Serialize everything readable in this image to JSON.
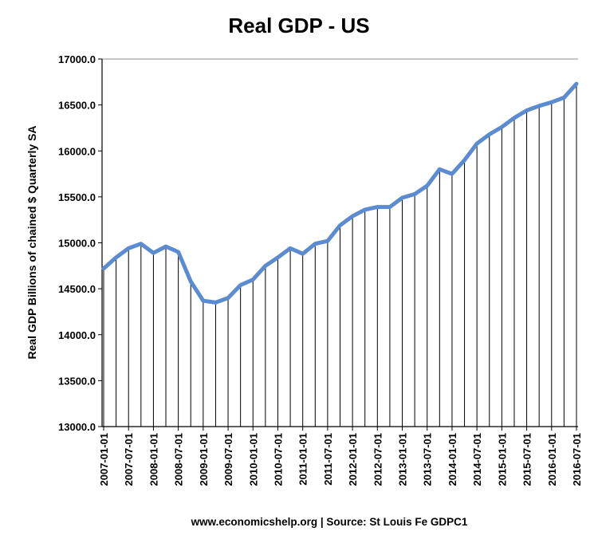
{
  "chart_data": {
    "type": "line",
    "title": "Real GDP - US",
    "xlabel": "",
    "ylabel": "Real GDP  Billions of chained $ Quarterly SA",
    "source": "www.economicshelp.org | Source: St Louis Fe GDPC1",
    "ylim": [
      13000,
      17000
    ],
    "y_ticks": [
      "13000.0",
      "13500.0",
      "14000.0",
      "14500.0",
      "15000.0",
      "15500.0",
      "16000.0",
      "16500.0",
      "17000.0"
    ],
    "x_tick_labels": [
      "2007-01-01",
      "2007-07-01",
      "2008-01-01",
      "2008-07-01",
      "2009-01-01",
      "2009-07-01",
      "2010-01-01",
      "2010-07-01",
      "2011-01-01",
      "2011-07-01",
      "2012-01-01",
      "2012-07-01",
      "2013-01-01",
      "2013-07-01",
      "2014-01-01",
      "2014-07-01",
      "2015-01-01",
      "2015-07-01",
      "2016-01-01",
      "2016-07-01"
    ],
    "x": [
      "2007-01-01",
      "2007-04-01",
      "2007-07-01",
      "2007-10-01",
      "2008-01-01",
      "2008-04-01",
      "2008-07-01",
      "2008-10-01",
      "2009-01-01",
      "2009-04-01",
      "2009-07-01",
      "2009-10-01",
      "2010-01-01",
      "2010-04-01",
      "2010-07-01",
      "2010-10-01",
      "2011-01-01",
      "2011-04-01",
      "2011-07-01",
      "2011-10-01",
      "2012-01-01",
      "2012-04-01",
      "2012-07-01",
      "2012-10-01",
      "2013-01-01",
      "2013-04-01",
      "2013-07-01",
      "2013-10-01",
      "2014-01-01",
      "2014-04-01",
      "2014-07-01",
      "2014-10-01",
      "2015-01-01",
      "2015-04-01",
      "2015-07-01",
      "2015-10-01",
      "2016-01-01",
      "2016-04-01",
      "2016-07-01"
    ],
    "series": [
      {
        "name": "Real GDP",
        "color": "#5b8bd0",
        "values": [
          14720,
          14840,
          14940,
          14990,
          14890,
          14960,
          14900,
          14580,
          14370,
          14350,
          14400,
          14540,
          14600,
          14750,
          14840,
          14940,
          14880,
          14990,
          15020,
          15190,
          15290,
          15360,
          15390,
          15390,
          15490,
          15530,
          15620,
          15800,
          15750,
          15900,
          16080,
          16180,
          16260,
          16360,
          16440,
          16490,
          16530,
          16580,
          16730
        ]
      }
    ],
    "grid": "vertical lines at each quarter",
    "legend": "none"
  }
}
